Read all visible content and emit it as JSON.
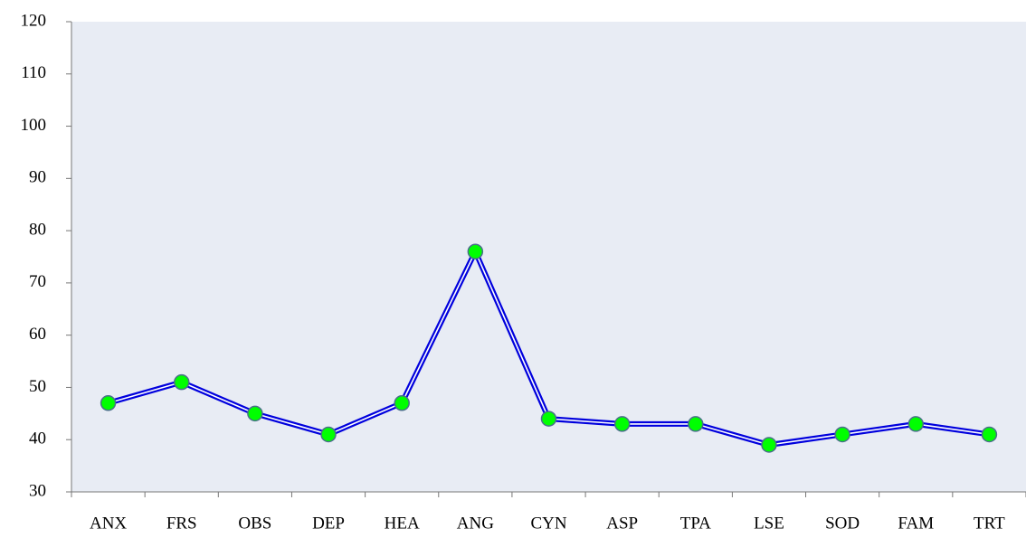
{
  "chart_data": {
    "type": "line",
    "categories": [
      "ANX",
      "FRS",
      "OBS",
      "DEP",
      "HEA",
      "ANG",
      "CYN",
      "ASP",
      "TPA",
      "LSE",
      "SOD",
      "FAM",
      "TRT"
    ],
    "values": [
      47,
      51,
      45,
      41,
      47,
      76,
      44,
      43,
      43,
      39,
      41,
      43,
      41
    ],
    "color": "#0000dd",
    "marker_color": "#00ff00",
    "ylim": [
      30,
      120
    ],
    "yticks": [
      30,
      40,
      50,
      60,
      70,
      80,
      90,
      100,
      110,
      120
    ],
    "grid": false
  }
}
